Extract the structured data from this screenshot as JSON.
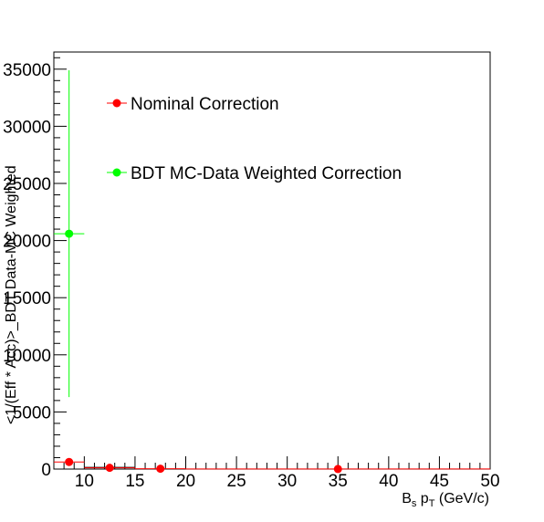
{
  "chart_data": {
    "type": "scatter",
    "title": "",
    "xlabel": {
      "base": "B",
      "base_sub": "s",
      "mid": " p",
      "mid_sub": "T",
      "rest": " (GeV/c)"
    },
    "ylabel": "<1/(Eff * Acc)>_BDT Data-MC Weighted",
    "xlim": [
      7,
      50
    ],
    "ylim": [
      0,
      36500
    ],
    "x_ticks": [
      10,
      15,
      20,
      25,
      30,
      35,
      40,
      45,
      50
    ],
    "x_minor_step": 1,
    "y_ticks": [
      0,
      5000,
      10000,
      15000,
      20000,
      25000,
      30000,
      35000
    ],
    "y_minor_step": 1000,
    "grid": false,
    "legend_position": "top-left",
    "series": [
      {
        "name": "Nominal Correction",
        "color": "#ff0000",
        "points": [
          {
            "x": 8.5,
            "y": 620,
            "xerr": 1.5,
            "yerr": 0
          },
          {
            "x": 12.5,
            "y": 110,
            "xerr": 2.5,
            "yerr": 0
          },
          {
            "x": 17.5,
            "y": 30,
            "xerr": 2.5,
            "yerr": 0
          },
          {
            "x": 35,
            "y": 5,
            "xerr": 15,
            "yerr": 0
          }
        ]
      },
      {
        "name": "BDT MC-Data Weighted Correction",
        "color": "#00ff00",
        "points": [
          {
            "x": 8.5,
            "y": 20600,
            "xerr": 1.5,
            "yerr": 14300
          }
        ]
      }
    ],
    "black_segments": [
      {
        "x1": 10,
        "x2": 15,
        "y": 150
      }
    ]
  }
}
